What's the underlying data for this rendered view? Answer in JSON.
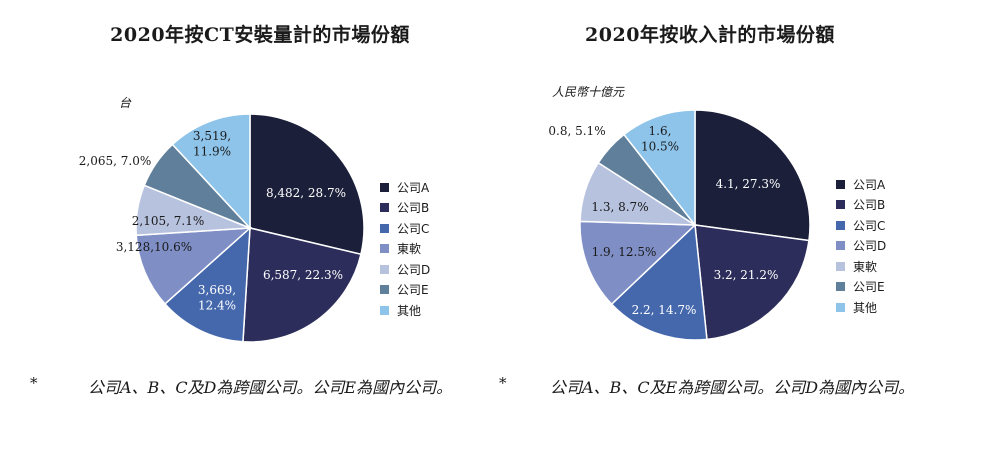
{
  "chart_data": [
    {
      "type": "pie",
      "title": "2020年按CT安裝量計的市場份額",
      "unit": "台",
      "slices": [
        {
          "name": "公司A",
          "value": 8482,
          "percent": 28.7,
          "label_lines": [
            "8,482, 28.7%"
          ],
          "color": "#1b1f3a"
        },
        {
          "name": "公司B",
          "value": 6587,
          "percent": 22.3,
          "label_lines": [
            "6,587, 22.3%"
          ],
          "color": "#2c2d5a"
        },
        {
          "name": "公司C",
          "value": 3669,
          "percent": 12.4,
          "label_lines": [
            "3,669,",
            "12.4%"
          ],
          "color": "#4568ad"
        },
        {
          "name": "東軟",
          "value": 3128,
          "percent": 10.6,
          "label_lines": [
            "3,128,10.6%"
          ],
          "color": "#7f8fc6"
        },
        {
          "name": "公司D",
          "value": 2105,
          "percent": 7.1,
          "label_lines": [
            "2,105, 7.1%"
          ],
          "color": "#b7c2df"
        },
        {
          "name": "公司E",
          "value": 2065,
          "percent": 7.0,
          "label_lines": [
            "2,065, 7.0%"
          ],
          "color": "#5f7f9b"
        },
        {
          "name": "其他",
          "value": 3519,
          "percent": 11.9,
          "label_lines": [
            "3,519,",
            "11.9%"
          ],
          "color": "#8ec4ea"
        }
      ],
      "legend_position": "right"
    },
    {
      "type": "pie",
      "title": "2020年按收入計的市場份額",
      "unit": "人民幣十億元",
      "slices": [
        {
          "name": "公司A",
          "value": 4.1,
          "percent": 27.3,
          "label_lines": [
            "4.1, 27.3%"
          ],
          "color": "#1b1f3a"
        },
        {
          "name": "公司B",
          "value": 3.2,
          "percent": 21.2,
          "label_lines": [
            "3.2, 21.2%"
          ],
          "color": "#2c2d5a"
        },
        {
          "name": "公司C",
          "value": 2.2,
          "percent": 14.7,
          "label_lines": [
            "2.2, 14.7%"
          ],
          "color": "#4568ad"
        },
        {
          "name": "公司D",
          "value": 1.9,
          "percent": 12.5,
          "label_lines": [
            "1.9, 12.5%"
          ],
          "color": "#7f8fc6"
        },
        {
          "name": "東軟",
          "value": 1.3,
          "percent": 8.7,
          "label_lines": [
            "1.3, 8.7%"
          ],
          "color": "#b7c2df"
        },
        {
          "name": "公司E",
          "value": 0.8,
          "percent": 5.1,
          "label_lines": [
            "0.8, 5.1%"
          ],
          "color": "#5f7f9b"
        },
        {
          "name": "其他",
          "value": 1.6,
          "percent": 10.5,
          "label_lines": [
            "1.6,",
            "10.5%"
          ],
          "color": "#8ec4ea"
        }
      ],
      "legend_position": "right"
    }
  ],
  "footnotes": {
    "left_marker": "*",
    "left": "公司A、B、C及D為跨國公司。公司E為國內公司。",
    "right_marker": "*",
    "right": "公司A、B、C及E為跨國公司。公司D為國內公司。"
  }
}
